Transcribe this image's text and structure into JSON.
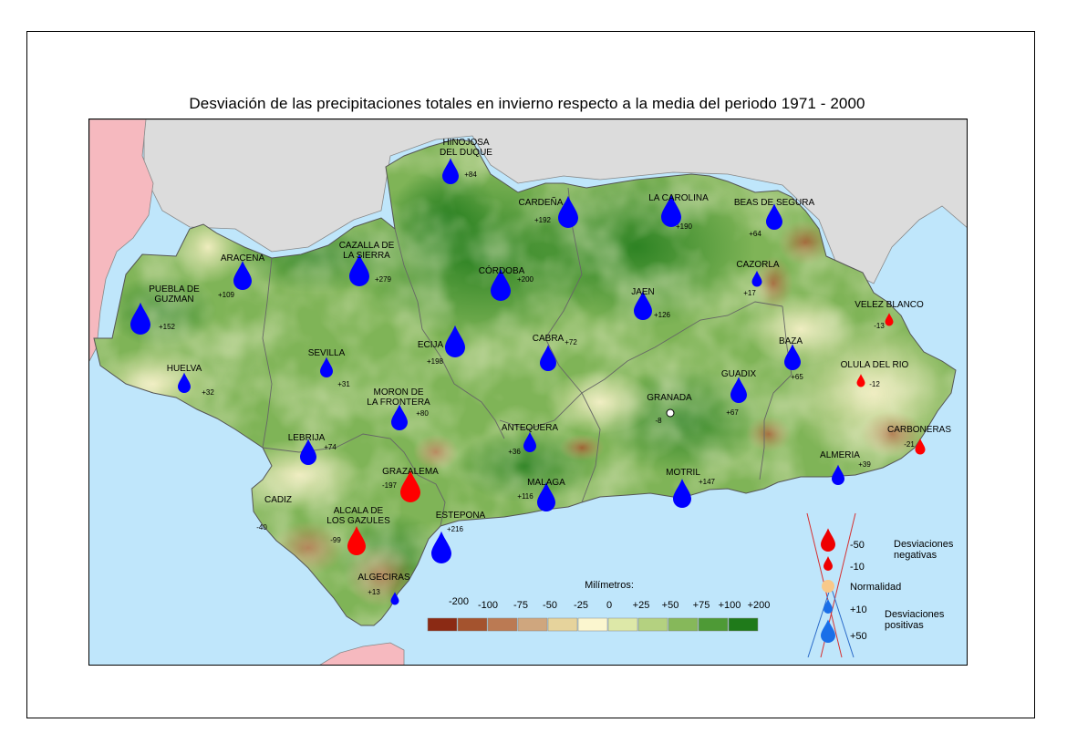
{
  "title": "Desviación de las precipitaciones totales en invierno respecto a la media del periodo 1971 - 2000",
  "stations": [
    {
      "name": "HINOJOSA\nDEL DUQUE",
      "value": "+84",
      "dev": 84
    },
    {
      "name": "CARDEÑA",
      "value": "+192",
      "dev": 192
    },
    {
      "name": "LA CAROLINA",
      "value": "+190",
      "dev": 190
    },
    {
      "name": "BEAS DE SEGURA",
      "value": "+64",
      "dev": 64
    },
    {
      "name": "ARACENA",
      "value": "+109",
      "dev": 109
    },
    {
      "name": "CAZALLA DE\nLA SIERRA",
      "value": "+279",
      "dev": 279
    },
    {
      "name": "CÓRDOBA",
      "value": "+200",
      "dev": 200
    },
    {
      "name": "CAZORLA",
      "value": "+17",
      "dev": 17
    },
    {
      "name": "PUEBLA DE\nGUZMAN",
      "value": "+152",
      "dev": 152
    },
    {
      "name": "JAEN",
      "value": "+126",
      "dev": 126
    },
    {
      "name": "VELEZ BLANCO",
      "value": "-13",
      "dev": -13
    },
    {
      "name": "ECIJA",
      "value": "+198",
      "dev": 198
    },
    {
      "name": "CABRA",
      "value": "+72",
      "dev": 72
    },
    {
      "name": "SEVILLA",
      "value": "+31",
      "dev": 31
    },
    {
      "name": "BAZA",
      "value": "+65",
      "dev": 65
    },
    {
      "name": "HUELVA",
      "value": "+32",
      "dev": 32
    },
    {
      "name": "OLULA DEL RIO",
      "value": "-12",
      "dev": -12
    },
    {
      "name": "GUADIX",
      "value": "+67",
      "dev": 67
    },
    {
      "name": "MORON DE\nLA FRONTERA",
      "value": "+80",
      "dev": 80
    },
    {
      "name": "GRANADA",
      "value": "-8",
      "dev": -8
    },
    {
      "name": "LEBRIJA",
      "value": "+74",
      "dev": 74
    },
    {
      "name": "ANTEQUERA",
      "value": "+36",
      "dev": 36
    },
    {
      "name": "CARBONERAS",
      "value": "-21",
      "dev": -21
    },
    {
      "name": "GRAZALEMA",
      "value": "-197",
      "dev": -197
    },
    {
      "name": "ALMERIA",
      "value": "+39",
      "dev": 39
    },
    {
      "name": "CADIZ",
      "value": "-40",
      "dev": -40
    },
    {
      "name": "MALAGA",
      "value": "+116",
      "dev": 116
    },
    {
      "name": "MOTRIL",
      "value": "+147",
      "dev": 147
    },
    {
      "name": "ALCALA DE\nLOS GAZULES",
      "value": "-99",
      "dev": -99
    },
    {
      "name": "ESTEPONA",
      "value": "+216",
      "dev": 216
    },
    {
      "name": "ALGECIRAS",
      "value": "+13",
      "dev": 13
    }
  ],
  "scale": {
    "unit": "Milímetros:",
    "labels": [
      "-200",
      "-100",
      "-75",
      "-50",
      "-25",
      "0",
      "+25",
      "+50",
      "+75",
      "+100",
      "+200"
    ],
    "colors": [
      "#8b2a14",
      "#a4532e",
      "#bb7a53",
      "#cfa67e",
      "#e6d39c",
      "#fbf6cf",
      "#dde8a8",
      "#b4d180",
      "#86b85a",
      "#4e9a36",
      "#1f7a1a"
    ]
  },
  "legend": {
    "items": [
      {
        "label": "-50",
        "color": "#ee0000"
      },
      {
        "label": "-10",
        "color": "#ee0000"
      },
      {
        "label": "Normalidad",
        "color": "#f8c98a"
      },
      {
        "label": "+10",
        "color": "#1a6fe8"
      },
      {
        "label": "+50",
        "color": "#1a6fe8"
      }
    ],
    "negative": [
      "Desviaciones",
      "negativas"
    ],
    "positive": [
      "Desviaciones",
      "positivas"
    ]
  },
  "colors": {
    "sea": "#bfe6fb",
    "portugal": "#f6b9bf",
    "spain_rest": "#dcdcdc",
    "positive_drop": "#0000ff",
    "negative_drop": "#ff0000"
  }
}
